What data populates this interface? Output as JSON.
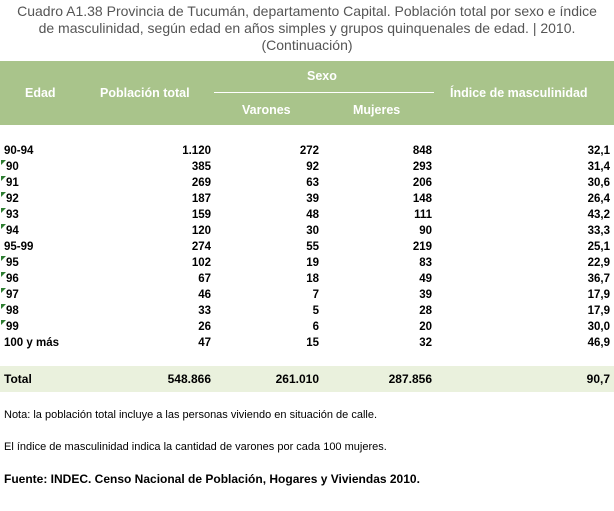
{
  "title": {
    "line1": "Cuadro A1.38 Provincia de Tucumán, departamento Capital. Población total por sexo e índice",
    "line2": "de masculinidad, según edad en años simples y grupos quinquenales de edad.  | 2010.",
    "line3": "(Continuación)"
  },
  "header": {
    "edad": "Edad",
    "poblacion_total": "Población total",
    "sexo": "Sexo",
    "varones": "Varones",
    "mujeres": "Mujeres",
    "indice": "Índice de masculinidad"
  },
  "rows": [
    {
      "edad": "90-94",
      "total": "1.120",
      "varones": "272",
      "mujeres": "848",
      "indice": "32,1",
      "mark": false
    },
    {
      "edad": "90",
      "total": "385",
      "varones": "92",
      "mujeres": "293",
      "indice": "31,4",
      "mark": true
    },
    {
      "edad": "91",
      "total": "269",
      "varones": "63",
      "mujeres": "206",
      "indice": "30,6",
      "mark": true
    },
    {
      "edad": "92",
      "total": "187",
      "varones": "39",
      "mujeres": "148",
      "indice": "26,4",
      "mark": true
    },
    {
      "edad": "93",
      "total": "159",
      "varones": "48",
      "mujeres": "111",
      "indice": "43,2",
      "mark": true
    },
    {
      "edad": "94",
      "total": "120",
      "varones": "30",
      "mujeres": "90",
      "indice": "33,3",
      "mark": true
    },
    {
      "edad": "95-99",
      "total": "274",
      "varones": "55",
      "mujeres": "219",
      "indice": "25,1",
      "mark": false
    },
    {
      "edad": "95",
      "total": "102",
      "varones": "19",
      "mujeres": "83",
      "indice": "22,9",
      "mark": true
    },
    {
      "edad": "96",
      "total": "67",
      "varones": "18",
      "mujeres": "49",
      "indice": "36,7",
      "mark": true
    },
    {
      "edad": "97",
      "total": "46",
      "varones": "7",
      "mujeres": "39",
      "indice": "17,9",
      "mark": true
    },
    {
      "edad": "98",
      "total": "33",
      "varones": "5",
      "mujeres": "28",
      "indice": "17,9",
      "mark": true
    },
    {
      "edad": "99",
      "total": "26",
      "varones": "6",
      "mujeres": "20",
      "indice": "30,0",
      "mark": true
    },
    {
      "edad": "100 y más",
      "total": "47",
      "varones": "15",
      "mujeres": "32",
      "indice": "46,9",
      "mark": false
    }
  ],
  "total_row": {
    "label": "Total",
    "total": "548.866",
    "varones": "261.010",
    "mujeres": "287.856",
    "indice": "90,7"
  },
  "notes": {
    "note1": "Nota: la población total incluye a las personas viviendo en situación de calle.",
    "note2": "El índice de masculinidad indica la cantidad de varones por cada 100 mujeres.",
    "fuente": "Fuente: INDEC. Censo Nacional de Población, Hogares y Viviendas 2010."
  },
  "colors": {
    "header_bg": "#a9c48b",
    "total_bg": "#eaf1dd",
    "title_text": "#555555",
    "marker": "#2e7d32"
  }
}
